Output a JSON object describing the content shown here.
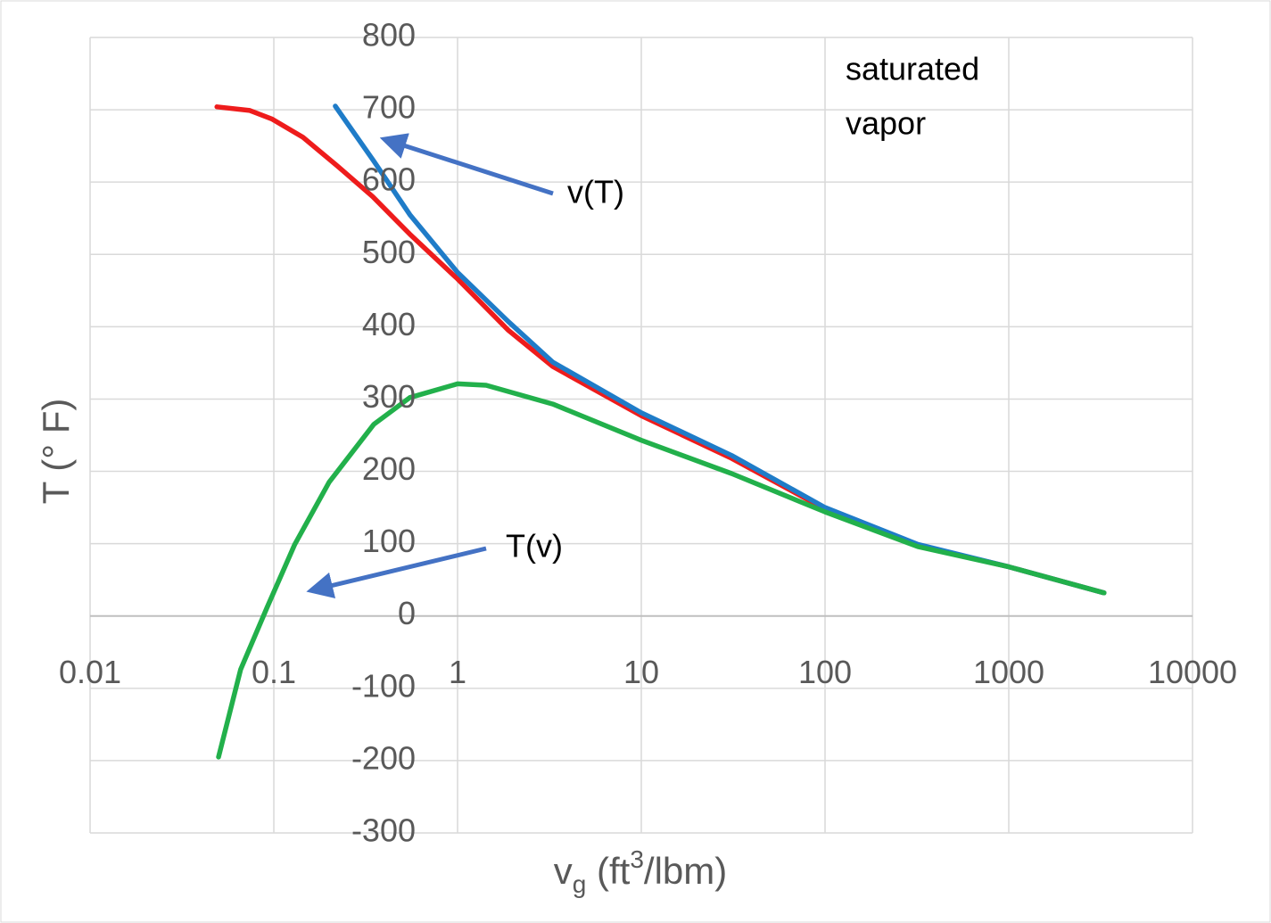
{
  "chart_data": {
    "type": "line",
    "x_label": [
      "v",
      "g",
      " (ft",
      "3",
      "/lbm)"
    ],
    "y_label": "T (° F)",
    "xscale": "log",
    "xlim": [
      0.01,
      10000
    ],
    "xticks": [
      0.01,
      0.1,
      1,
      10,
      100,
      1000,
      10000
    ],
    "ylim": [
      -300,
      800
    ],
    "yticks": [
      -300,
      -200,
      -100,
      0,
      100,
      200,
      300,
      400,
      500,
      600,
      700,
      800
    ],
    "grid": true,
    "series": [
      {
        "color": "#ee1c1c",
        "x": [
          0.049,
          0.074,
          0.098,
          0.144,
          0.22,
          0.345,
          0.55,
          1.0,
          1.89,
          3.3,
          10,
          31,
          100,
          320,
          1000,
          3300
        ],
        "y": [
          704,
          699,
          687,
          662,
          623,
          580,
          528,
          466,
          395,
          345,
          277,
          218,
          148,
          98,
          68,
          32
        ]
      },
      {
        "color": "#1f7cc8",
        "x": [
          0.216,
          0.35,
          0.55,
          1.0,
          1.89,
          3.3,
          10,
          31,
          100,
          320,
          1000,
          3300
        ],
        "y": [
          705,
          629,
          555,
          475,
          407,
          351,
          281,
          222,
          150,
          99,
          68,
          32
        ]
      },
      {
        "color": "#22b04b",
        "x": [
          0.05,
          0.066,
          0.092,
          0.13,
          0.2,
          0.35,
          0.55,
          1.0,
          1.43,
          3.3,
          10,
          31,
          100,
          320,
          1000,
          3300
        ],
        "y": [
          -195,
          -74,
          12,
          99,
          185,
          265,
          302,
          321,
          319,
          293,
          243,
          197,
          144,
          96,
          68,
          32
        ]
      }
    ],
    "annotations": {
      "saturated": [
        "saturated",
        "vapor"
      ],
      "vT": "v(T)",
      "Tv": "T(v)"
    }
  }
}
